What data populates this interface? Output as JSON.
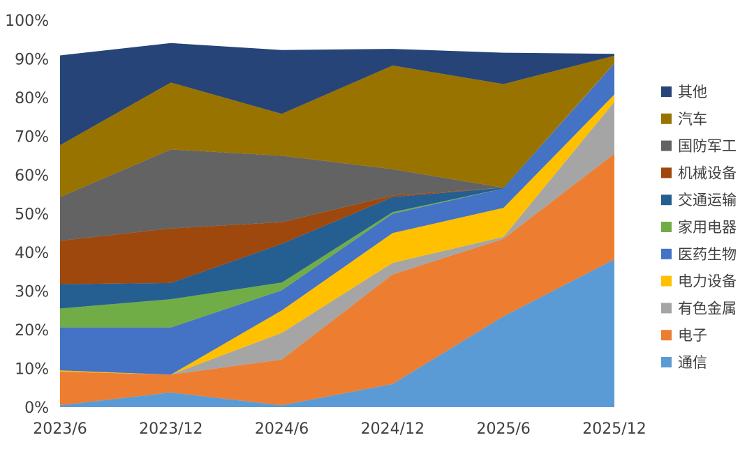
{
  "chart_data": {
    "type": "area",
    "stacked": true,
    "x": [
      "2023/6",
      "2023/12",
      "2024/6",
      "2024/12",
      "2025/6",
      "2025/12"
    ],
    "ylim": [
      0,
      100
    ],
    "yticks": [
      "0%",
      "10%",
      "20%",
      "30%",
      "40%",
      "50%",
      "60%",
      "70%",
      "80%",
      "90%",
      "100%"
    ],
    "ytick_values": [
      0,
      10,
      20,
      30,
      40,
      50,
      60,
      70,
      80,
      90,
      100
    ],
    "legend_position": "right",
    "grid": false,
    "series": [
      {
        "name": "通信",
        "color": "#5b9bd5",
        "values": [
          0.5,
          3.8,
          0.5,
          6.0,
          23.5,
          38.2
        ]
      },
      {
        "name": "电子",
        "color": "#ed7d31",
        "values": [
          8.7,
          4.6,
          11.8,
          28.3,
          20.0,
          27.3
        ]
      },
      {
        "name": "有色金属",
        "color": "#a5a5a5",
        "values": [
          0,
          0,
          6.9,
          3.0,
          0.5,
          13.4
        ]
      },
      {
        "name": "电力设备",
        "color": "#ffc000",
        "values": [
          0.3,
          0,
          5.8,
          7.7,
          7.5,
          1.9
        ]
      },
      {
        "name": "医药生物",
        "color": "#4472c4",
        "values": [
          11.1,
          12.2,
          5.2,
          5.0,
          5.0,
          8.0
        ]
      },
      {
        "name": "家用电器",
        "color": "#70ad47",
        "values": [
          4.9,
          7.3,
          2.0,
          0.4,
          0,
          0
        ]
      },
      {
        "name": "交通运输",
        "color": "#255e91",
        "values": [
          6.3,
          4.2,
          10.0,
          3.9,
          0.2,
          0
        ]
      },
      {
        "name": "机械设备",
        "color": "#9e480e",
        "values": [
          11.2,
          14.1,
          5.6,
          0.4,
          0,
          0.1
        ]
      },
      {
        "name": "国防军工",
        "color": "#636363",
        "values": [
          11.3,
          20.4,
          17.2,
          6.8,
          0,
          0.1
        ]
      },
      {
        "name": "汽车",
        "color": "#997300",
        "values": [
          13.4,
          17.3,
          10.8,
          26.8,
          26.8,
          1.8
        ]
      },
      {
        "name": "其他",
        "color": "#264478",
        "values": [
          23.2,
          10.2,
          16.5,
          4.3,
          8.1,
          0.5
        ]
      }
    ]
  }
}
